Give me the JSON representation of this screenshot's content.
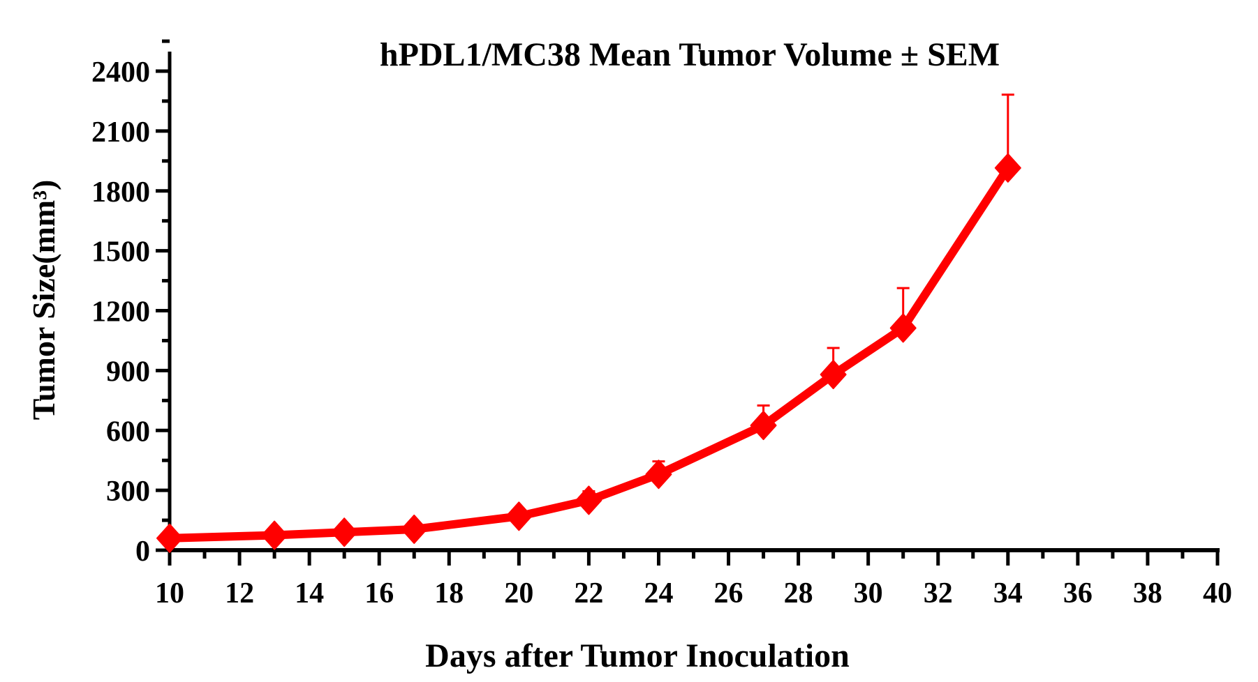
{
  "chart_data": {
    "type": "line",
    "title": "hPDL1/MC38 Mean Tumor Volume ± SEM",
    "xlabel": "Days after Tumor Inoculation",
    "ylabel": "Tumor Size(mm³)",
    "xlim": [
      10,
      40
    ],
    "ylim": [
      0,
      2400
    ],
    "xticks": [
      "10",
      "12",
      "14",
      "16",
      "18",
      "20",
      "22",
      "24",
      "26",
      "28",
      "30",
      "32",
      "34",
      "36",
      "38",
      "40"
    ],
    "yticks": [
      "0",
      "300",
      "600",
      "900",
      "1200",
      "1500",
      "1800",
      "2100",
      "2400"
    ],
    "grid": false,
    "legend": "none",
    "series": [
      {
        "color": "#ff0000",
        "marker": "diamond",
        "x": [
          10,
          13,
          15,
          17,
          20,
          22,
          24,
          27,
          29,
          31,
          34
        ],
        "y": [
          60,
          75,
          90,
          105,
          170,
          250,
          380,
          625,
          880,
          1113,
          1915
        ],
        "sem": [
          0,
          0,
          0,
          0,
          0,
          45,
          65,
          100,
          133,
          200,
          367
        ]
      }
    ]
  }
}
